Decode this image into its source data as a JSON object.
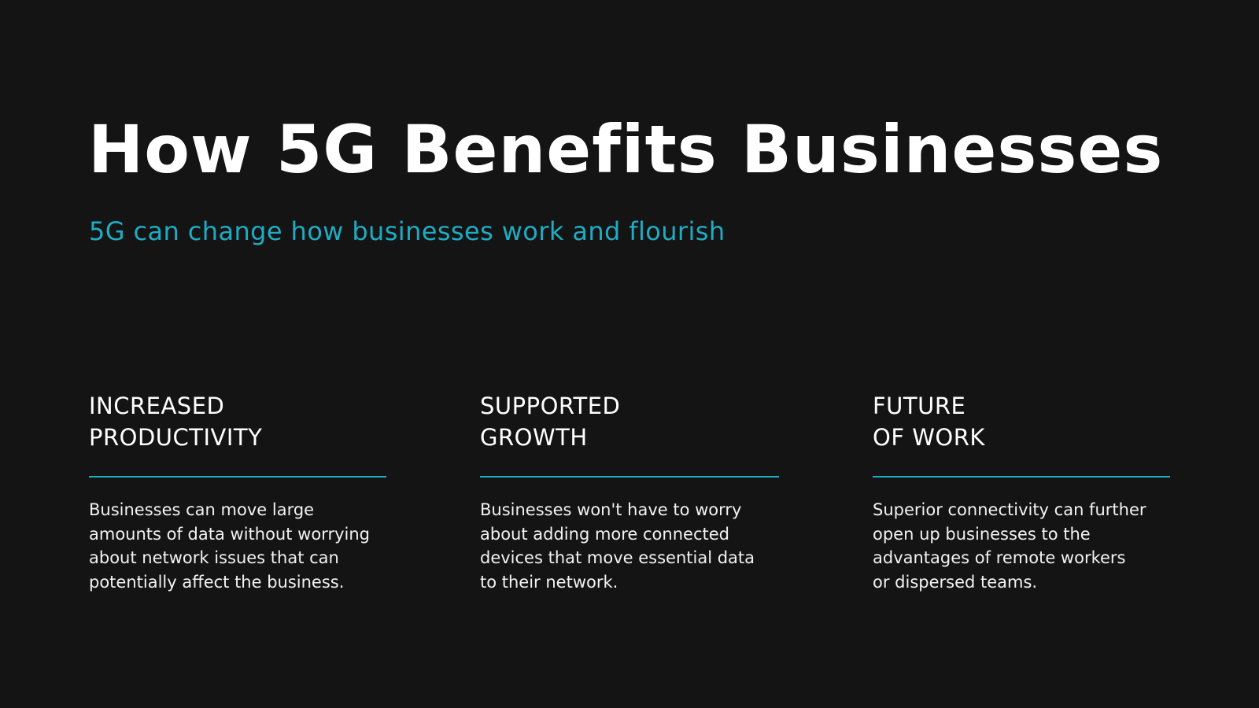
{
  "colors": {
    "background": "#141414",
    "text": "#ffffff",
    "accent": "#1eacc3"
  },
  "title": "How 5G Benefits Businesses",
  "subtitle": "5G can change how businesses work and flourish",
  "columns": [
    {
      "heading": [
        "INCREASED",
        "PRODUCTIVITY"
      ],
      "body": [
        "Businesses can move large",
        "amounts of data without worrying",
        "about network issues that can",
        "potentially affect the business."
      ]
    },
    {
      "heading": [
        "SUPPORTED",
        "GROWTH"
      ],
      "body": [
        "Businesses won't have to worry",
        "about adding more connected",
        "devices that move essential data",
        "to their network."
      ]
    },
    {
      "heading": [
        "FUTURE",
        "OF WORK"
      ],
      "body": [
        "Superior connectivity can further",
        "open up businesses to the",
        "advantages of remote workers",
        "or dispersed teams."
      ]
    }
  ]
}
